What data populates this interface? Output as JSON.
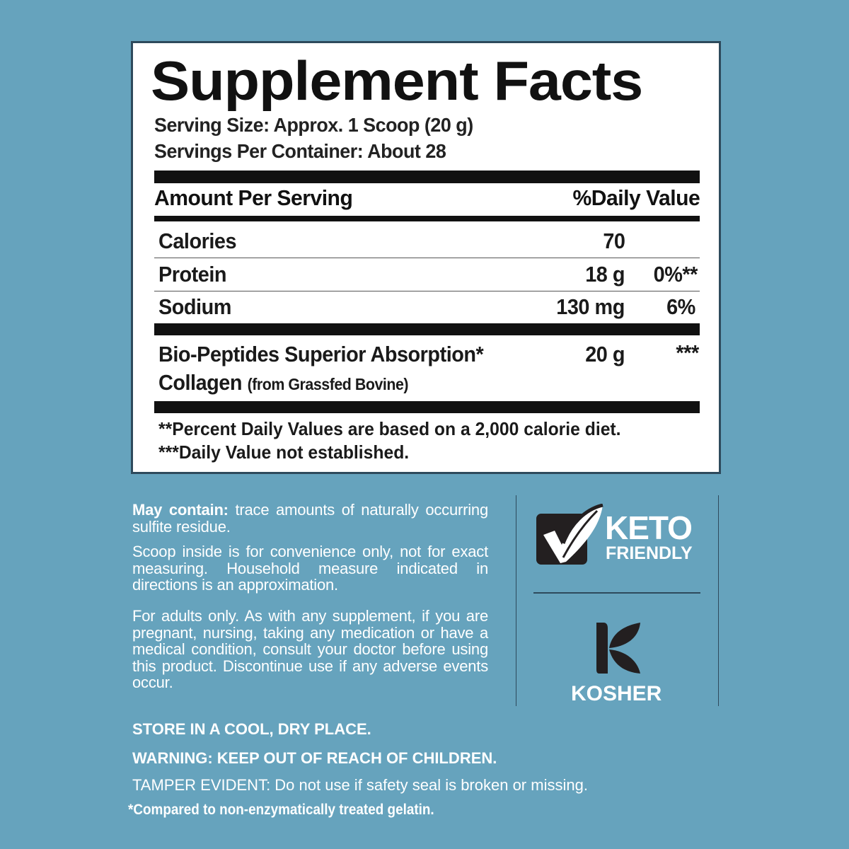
{
  "facts": {
    "title": "Supplement Facts",
    "serving_size": "Serving Size: Approx. 1 Scoop (20 g)",
    "servings_per_container": "Servings Per Container: About 28",
    "header_left": "Amount Per Serving",
    "header_right": "%Daily Value",
    "rows": [
      {
        "name": "Calories",
        "amount": "70",
        "dv": ""
      },
      {
        "name": "Protein",
        "amount": "18 g",
        "dv": "0%**"
      },
      {
        "name": "Sodium",
        "amount": "130 mg",
        "dv": "6%"
      }
    ],
    "ingredient": {
      "line1": "Bio-Peptides Superior Absorption*",
      "line2": "Collagen",
      "source": "(from Grassfed Bovine)",
      "amount": "20 g",
      "dv": "***"
    },
    "footnote1": "**Percent Daily Values are based on a 2,000 calorie diet.",
    "footnote2": "***Daily Value not established."
  },
  "notes": {
    "may_contain_label": "May contain:",
    "may_contain_text": " trace amounts of naturally occurring sulfite residue.",
    "scoop": "Scoop inside is for convenience only, not for exact measuring. Household measure indicated in directions is an approximation.",
    "adults": "For adults only. As with any supplement, if you are pregnant, nursing, taking any medication or have a medical condition, consult your doctor before using this product. Discontinue use if any adverse events occur."
  },
  "badges": {
    "keto_line1": "KETO",
    "keto_line2": "FRIENDLY",
    "kosher": "KOSHER"
  },
  "bottom": {
    "store": "STORE IN A COOL, DRY PLACE.",
    "warning": "WARNING: KEEP OUT OF REACH OF CHILDREN.",
    "tamper": "TAMPER EVIDENT: Do not use if safety seal is broken or missing.",
    "compared": "*Compared to non-enzymatically treated gelatin."
  },
  "colors": {
    "background": "#66a3bd",
    "panel_border": "#2e4a5c",
    "ink": "#111111"
  }
}
